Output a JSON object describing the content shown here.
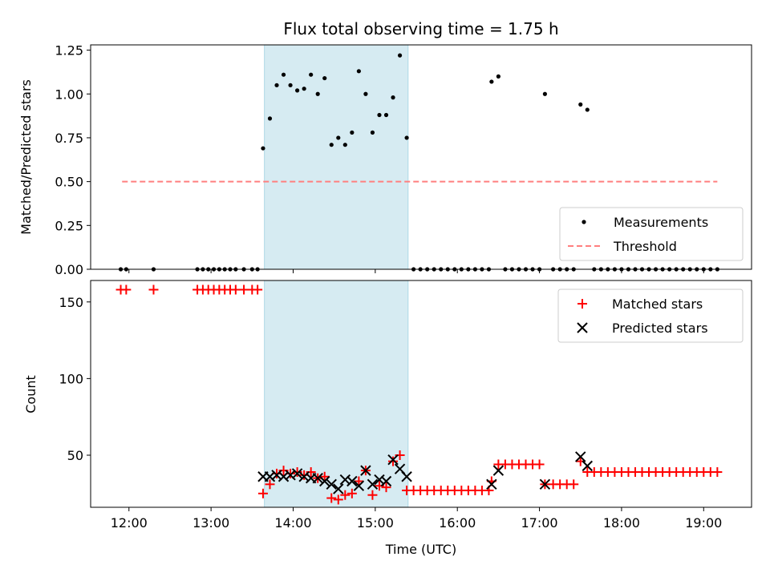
{
  "chart_data": [
    {
      "type": "scatter",
      "title": "Flux total observing time = 1.75 h",
      "ylabel": "Matched/Predicted stars",
      "xlabel": "",
      "xlim": [
        "11:32",
        "19:35"
      ],
      "ylim": [
        0,
        1.28
      ],
      "x_ticks": [
        "12:00",
        "13:00",
        "14:00",
        "15:00",
        "16:00",
        "17:00",
        "18:00",
        "19:00"
      ],
      "x_tick_labels_visible": false,
      "y_ticks": [
        "0.00",
        "0.25",
        "0.50",
        "0.75",
        "1.00",
        "1.25"
      ],
      "legend": {
        "placement": "lower-right",
        "entries": [
          "Measurements",
          "Threshold"
        ]
      },
      "shaded_interval": {
        "start": "13:39",
        "end": "15:24",
        "color": "#add8e6"
      },
      "threshold": {
        "name": "Threshold",
        "value": 0.5,
        "x_start": "11:55",
        "x_end": "19:10",
        "color": "#ff7f7f",
        "style": "dashed"
      },
      "series": [
        {
          "name": "Measurements",
          "color": "#000000",
          "points": [
            [
              "11:54",
              0
            ],
            [
              "11:58",
              0
            ],
            [
              "12:18",
              0
            ],
            [
              "12:50",
              0
            ],
            [
              "12:54",
              0
            ],
            [
              "12:58",
              0
            ],
            [
              "13:02",
              0
            ],
            [
              "13:06",
              0
            ],
            [
              "13:10",
              0
            ],
            [
              "13:14",
              0
            ],
            [
              "13:18",
              0
            ],
            [
              "13:24",
              0
            ],
            [
              "13:30",
              0
            ],
            [
              "13:34",
              0
            ],
            [
              "13:38",
              0.69
            ],
            [
              "13:43",
              0.86
            ],
            [
              "13:48",
              1.05
            ],
            [
              "13:53",
              1.11
            ],
            [
              "13:58",
              1.05
            ],
            [
              "14:03",
              1.02
            ],
            [
              "14:08",
              1.03
            ],
            [
              "14:13",
              1.11
            ],
            [
              "14:18",
              1.0
            ],
            [
              "14:23",
              1.09
            ],
            [
              "14:28",
              0.71
            ],
            [
              "14:33",
              0.75
            ],
            [
              "14:38",
              0.71
            ],
            [
              "14:43",
              0.78
            ],
            [
              "14:48",
              1.13
            ],
            [
              "14:53",
              1.0
            ],
            [
              "14:58",
              0.78
            ],
            [
              "15:03",
              0.88
            ],
            [
              "15:08",
              0.88
            ],
            [
              "15:13",
              0.98
            ],
            [
              "15:18",
              1.22
            ],
            [
              "15:23",
              0.75
            ],
            [
              "15:28",
              0
            ],
            [
              "15:33",
              0
            ],
            [
              "15:38",
              0
            ],
            [
              "15:43",
              0
            ],
            [
              "15:48",
              0
            ],
            [
              "15:53",
              0
            ],
            [
              "15:58",
              0
            ],
            [
              "16:03",
              0
            ],
            [
              "16:08",
              0
            ],
            [
              "16:13",
              0
            ],
            [
              "16:18",
              0
            ],
            [
              "16:23",
              0
            ],
            [
              "16:25",
              1.07
            ],
            [
              "16:30",
              1.1
            ],
            [
              "16:35",
              0
            ],
            [
              "16:40",
              0
            ],
            [
              "16:45",
              0
            ],
            [
              "16:50",
              0
            ],
            [
              "16:55",
              0
            ],
            [
              "17:00",
              0
            ],
            [
              "17:04",
              1.0
            ],
            [
              "17:10",
              0
            ],
            [
              "17:15",
              0
            ],
            [
              "17:20",
              0
            ],
            [
              "17:25",
              0
            ],
            [
              "17:30",
              0.94
            ],
            [
              "17:35",
              0.91
            ],
            [
              "17:40",
              0
            ],
            [
              "17:45",
              0
            ],
            [
              "17:50",
              0
            ],
            [
              "17:55",
              0
            ],
            [
              "18:00",
              0
            ],
            [
              "18:05",
              0
            ],
            [
              "18:10",
              0
            ],
            [
              "18:15",
              0
            ],
            [
              "18:20",
              0
            ],
            [
              "18:25",
              0
            ],
            [
              "18:30",
              0
            ],
            [
              "18:35",
              0
            ],
            [
              "18:40",
              0
            ],
            [
              "18:45",
              0
            ],
            [
              "18:50",
              0
            ],
            [
              "18:55",
              0
            ],
            [
              "19:00",
              0
            ],
            [
              "19:05",
              0
            ],
            [
              "19:10",
              0
            ]
          ]
        }
      ]
    },
    {
      "type": "scatter",
      "title": "",
      "ylabel": "Count",
      "xlabel": "Time (UTC)",
      "xlim": [
        "11:32",
        "19:35"
      ],
      "ylim": [
        16,
        164
      ],
      "x_ticks": [
        "12:00",
        "13:00",
        "14:00",
        "15:00",
        "16:00",
        "17:00",
        "18:00",
        "19:00"
      ],
      "y_ticks": [
        "50",
        "100",
        "150"
      ],
      "legend": {
        "placement": "upper-right",
        "entries": [
          "Matched stars",
          "Predicted stars"
        ]
      },
      "shaded_interval": {
        "start": "13:39",
        "end": "15:24",
        "color": "#add8e6"
      },
      "series": [
        {
          "name": "Matched stars",
          "color": "#ff0000",
          "marker": "+",
          "points": [
            [
              "11:54",
              158
            ],
            [
              "11:58",
              158
            ],
            [
              "12:18",
              158
            ],
            [
              "12:50",
              158
            ],
            [
              "12:54",
              158
            ],
            [
              "12:58",
              158
            ],
            [
              "13:02",
              158
            ],
            [
              "13:06",
              158
            ],
            [
              "13:10",
              158
            ],
            [
              "13:14",
              158
            ],
            [
              "13:18",
              158
            ],
            [
              "13:24",
              158
            ],
            [
              "13:30",
              158
            ],
            [
              "13:34",
              158
            ],
            [
              "13:38",
              25
            ],
            [
              "13:43",
              31
            ],
            [
              "13:48",
              38
            ],
            [
              "13:53",
              40
            ],
            [
              "13:58",
              38
            ],
            [
              "14:03",
              39
            ],
            [
              "14:08",
              37
            ],
            [
              "14:13",
              39
            ],
            [
              "14:18",
              35
            ],
            [
              "14:23",
              36
            ],
            [
              "14:28",
              22
            ],
            [
              "14:33",
              21
            ],
            [
              "14:38",
              24
            ],
            [
              "14:43",
              25
            ],
            [
              "14:48",
              33
            ],
            [
              "14:53",
              40
            ],
            [
              "14:58",
              24
            ],
            [
              "15:03",
              30
            ],
            [
              "15:08",
              29
            ],
            [
              "15:13",
              46
            ],
            [
              "15:18",
              50
            ],
            [
              "15:23",
              27
            ],
            [
              "15:28",
              27
            ],
            [
              "15:33",
              27
            ],
            [
              "15:38",
              27
            ],
            [
              "15:43",
              27
            ],
            [
              "15:48",
              27
            ],
            [
              "15:53",
              27
            ],
            [
              "15:58",
              27
            ],
            [
              "16:03",
              27
            ],
            [
              "16:08",
              27
            ],
            [
              "16:13",
              27
            ],
            [
              "16:18",
              27
            ],
            [
              "16:23",
              27
            ],
            [
              "16:25",
              33
            ],
            [
              "16:30",
              44
            ],
            [
              "16:35",
              44
            ],
            [
              "16:40",
              44
            ],
            [
              "16:45",
              44
            ],
            [
              "16:50",
              44
            ],
            [
              "16:55",
              44
            ],
            [
              "17:00",
              44
            ],
            [
              "17:04",
              31
            ],
            [
              "17:10",
              31
            ],
            [
              "17:15",
              31
            ],
            [
              "17:20",
              31
            ],
            [
              "17:25",
              31
            ],
            [
              "17:30",
              46
            ],
            [
              "17:35",
              39
            ],
            [
              "17:40",
              39
            ],
            [
              "17:45",
              39
            ],
            [
              "17:50",
              39
            ],
            [
              "17:55",
              39
            ],
            [
              "18:00",
              39
            ],
            [
              "18:05",
              39
            ],
            [
              "18:10",
              39
            ],
            [
              "18:15",
              39
            ],
            [
              "18:20",
              39
            ],
            [
              "18:25",
              39
            ],
            [
              "18:30",
              39
            ],
            [
              "18:35",
              39
            ],
            [
              "18:40",
              39
            ],
            [
              "18:45",
              39
            ],
            [
              "18:50",
              39
            ],
            [
              "18:55",
              39
            ],
            [
              "19:00",
              39
            ],
            [
              "19:05",
              39
            ],
            [
              "19:10",
              39
            ]
          ]
        },
        {
          "name": "Predicted stars",
          "color": "#000000",
          "marker": "x",
          "points": [
            [
              "13:38",
              36
            ],
            [
              "13:43",
              36
            ],
            [
              "13:48",
              37
            ],
            [
              "13:53",
              36
            ],
            [
              "13:58",
              37
            ],
            [
              "14:03",
              38
            ],
            [
              "14:08",
              36
            ],
            [
              "14:13",
              35
            ],
            [
              "14:18",
              35
            ],
            [
              "14:23",
              33
            ],
            [
              "14:28",
              31
            ],
            [
              "14:33",
              28
            ],
            [
              "14:38",
              34
            ],
            [
              "14:43",
              33
            ],
            [
              "14:48",
              30
            ],
            [
              "14:53",
              40
            ],
            [
              "14:58",
              31
            ],
            [
              "15:03",
              34
            ],
            [
              "15:08",
              33
            ],
            [
              "15:13",
              47
            ],
            [
              "15:18",
              41
            ],
            [
              "15:23",
              36
            ],
            [
              "16:25",
              31
            ],
            [
              "16:30",
              40
            ],
            [
              "17:04",
              31
            ],
            [
              "17:30",
              49
            ],
            [
              "17:35",
              43
            ]
          ]
        }
      ]
    }
  ]
}
